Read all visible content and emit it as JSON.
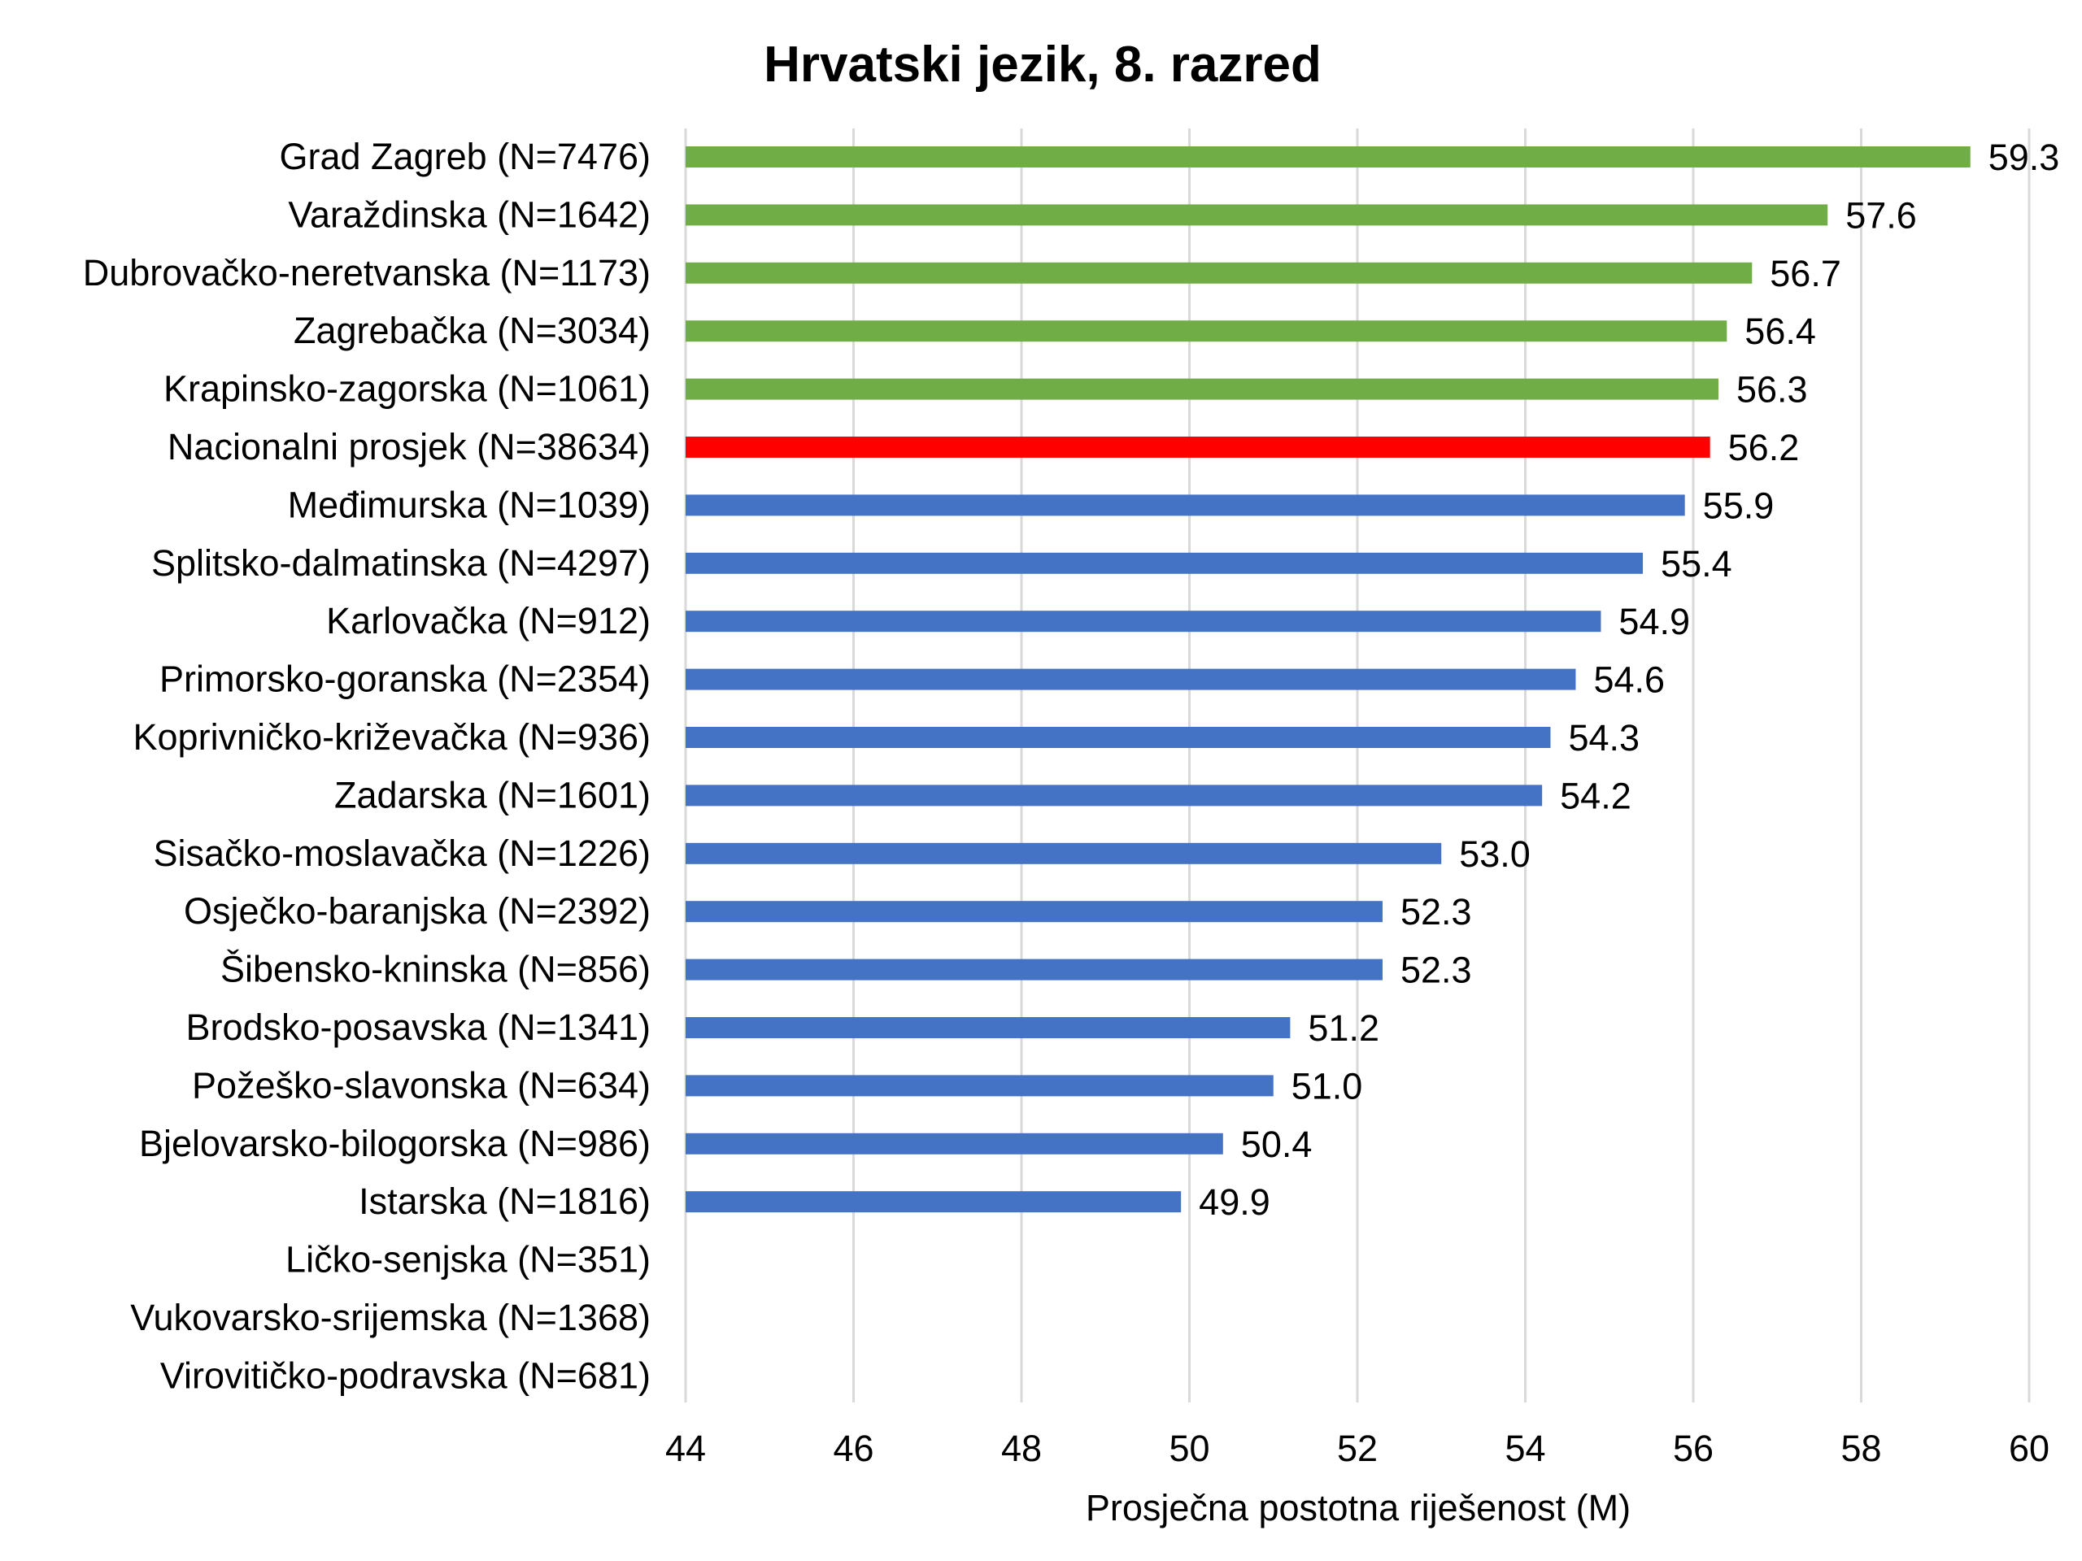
{
  "chart_data": {
    "type": "bar",
    "orientation": "horizontal",
    "title": "Hrvatski jezik, 8. razred",
    "xlabel": "Prosječna postotna riješenost (M)",
    "ylabel": "",
    "xlim": [
      44,
      60
    ],
    "ticks": [
      "44",
      "46",
      "48",
      "50",
      "52",
      "54",
      "56",
      "58",
      "60"
    ],
    "tick_values": [
      44,
      46,
      48,
      50,
      52,
      54,
      56,
      58,
      60
    ],
    "grid": true,
    "legend": "none",
    "colors": {
      "above_average": "#70ad47",
      "national_average": "#ff0000",
      "below_average": "#4472c4",
      "national_label": "#ff0000",
      "default_label": "#000000",
      "grid": "#d9d9d9"
    },
    "categories": [
      "Grad Zagreb (N=7476)",
      "Varaždinska (N=1642)",
      "Dubrovačko-neretvanska (N=1173)",
      "Zagrebačka (N=3034)",
      "Krapinsko-zagorska (N=1061)",
      "Nacionalni prosjek (N=38634)",
      "Međimurska (N=1039)",
      "Splitsko-dalmatinska (N=4297)",
      "Karlovačka (N=912)",
      "Primorsko-goranska (N=2354)",
      "Koprivničko-križevačka (N=936)",
      "Zadarska (N=1601)",
      "Sisačko-moslavačka (N=1226)",
      "Osječko-baranjska (N=2392)",
      "Šibensko-kninska (N=856)",
      "Brodsko-posavska (N=1341)",
      "Požeško-slavonska (N=634)",
      "Bjelovarsko-bilogorska (N=986)",
      "Istarska (N=1816)",
      "Ličko-senjska (N=351)",
      "Vukovarsko-srijemska (N=1368)",
      "Virovitičko-podravska (N=681)"
    ],
    "values": [
      59.3,
      57.6,
      56.7,
      56.4,
      56.3,
      56.2,
      55.9,
      55.4,
      54.9,
      54.6,
      54.3,
      54.2,
      53.0,
      52.3,
      52.3,
      51.2,
      51.0,
      50.4,
      49.9,
      null,
      null,
      null
    ],
    "value_labels": [
      "59.3",
      "57.6",
      "56.7",
      "56.4",
      "56.3",
      "56.2",
      "55.9",
      "55.4",
      "54.9",
      "54.6",
      "54.3",
      "54.2",
      "53.0",
      "52.3",
      "52.3",
      "51.2",
      "51.0",
      "50.4",
      "49.9",
      "",
      "",
      ""
    ],
    "groups": [
      "above",
      "above",
      "above",
      "above",
      "above",
      "national",
      "below",
      "below",
      "below",
      "below",
      "below",
      "below",
      "below",
      "below",
      "below",
      "below",
      "below",
      "below",
      "below",
      "none",
      "none",
      "none"
    ]
  }
}
